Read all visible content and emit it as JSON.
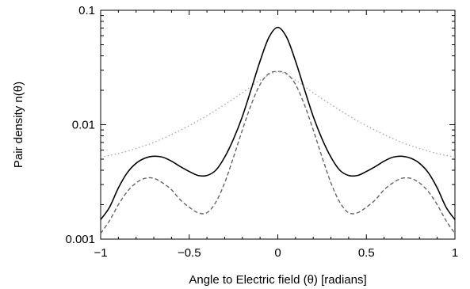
{
  "chart_data": {
    "type": "line",
    "title": "",
    "xlabel": "Angle to Electric field (θ) [radians]",
    "ylabel": "Pair density n(θ)",
    "xlim": [
      -1,
      1
    ],
    "ylim": [
      0.001,
      0.1
    ],
    "yscale": "log",
    "x_ticks": [
      -1,
      -0.5,
      0,
      0.5,
      1
    ],
    "x_tick_labels": [
      "−1",
      "−0.5",
      "0",
      "0.5",
      "1"
    ],
    "y_ticks": [
      0.001,
      0.01,
      0.1
    ],
    "y_tick_labels": [
      "0.001",
      "0.01",
      "0.1"
    ],
    "grid": false,
    "legend": null,
    "series": [
      {
        "style": "solid",
        "color": "#000000",
        "x": [
          -1,
          -0.95,
          -0.9,
          -0.85,
          -0.8,
          -0.75,
          -0.7,
          -0.65,
          -0.6,
          -0.55,
          -0.5,
          -0.45,
          -0.4,
          -0.35,
          -0.3,
          -0.25,
          -0.2,
          -0.15,
          -0.1,
          -0.05,
          0,
          0.05,
          0.1,
          0.15,
          0.2,
          0.25,
          0.3,
          0.35,
          0.4,
          0.45,
          0.5,
          0.55,
          0.6,
          0.65,
          0.7,
          0.75,
          0.8,
          0.85,
          0.9,
          0.95,
          1
        ],
        "y": [
          0.00148,
          0.0019,
          0.0028,
          0.0038,
          0.0046,
          0.0051,
          0.0053,
          0.0052,
          0.0048,
          0.0043,
          0.0039,
          0.0036,
          0.0036,
          0.004,
          0.0052,
          0.0075,
          0.0118,
          0.0205,
          0.036,
          0.058,
          0.071,
          0.058,
          0.036,
          0.0205,
          0.0118,
          0.0075,
          0.0052,
          0.004,
          0.0036,
          0.0036,
          0.0039,
          0.0043,
          0.0048,
          0.0052,
          0.0053,
          0.0051,
          0.0046,
          0.0038,
          0.0028,
          0.0019,
          0.00148
        ]
      },
      {
        "style": "dashed",
        "color": "#666666",
        "x": [
          -1,
          -0.95,
          -0.9,
          -0.85,
          -0.8,
          -0.75,
          -0.7,
          -0.65,
          -0.6,
          -0.55,
          -0.5,
          -0.45,
          -0.4,
          -0.35,
          -0.3,
          -0.25,
          -0.2,
          -0.15,
          -0.1,
          -0.05,
          0,
          0.05,
          0.1,
          0.15,
          0.2,
          0.25,
          0.3,
          0.35,
          0.4,
          0.45,
          0.5,
          0.55,
          0.6,
          0.65,
          0.7,
          0.75,
          0.8,
          0.85,
          0.9,
          0.95,
          1
        ],
        "y": [
          0.00112,
          0.00145,
          0.002,
          0.0026,
          0.0031,
          0.0034,
          0.0034,
          0.0031,
          0.0027,
          0.0022,
          0.0019,
          0.0017,
          0.0017,
          0.0021,
          0.0031,
          0.0052,
          0.009,
          0.015,
          0.0225,
          0.028,
          0.0292,
          0.028,
          0.0225,
          0.015,
          0.009,
          0.0052,
          0.0031,
          0.0021,
          0.0017,
          0.0017,
          0.0019,
          0.0022,
          0.0027,
          0.0031,
          0.0034,
          0.0034,
          0.0031,
          0.0026,
          0.002,
          0.00145,
          0.00112
        ]
      },
      {
        "style": "dotted",
        "color": "#aaaaaa",
        "x": [
          -1,
          -0.9,
          -0.8,
          -0.7,
          -0.6,
          -0.5,
          -0.4,
          -0.3,
          -0.2,
          -0.1,
          0,
          0.1,
          0.2,
          0.3,
          0.4,
          0.5,
          0.6,
          0.7,
          0.8,
          0.9,
          1
        ],
        "y": [
          0.0052,
          0.0056,
          0.0062,
          0.007,
          0.0082,
          0.0098,
          0.012,
          0.015,
          0.019,
          0.0245,
          0.029,
          0.0245,
          0.019,
          0.015,
          0.012,
          0.0098,
          0.0082,
          0.007,
          0.0062,
          0.0056,
          0.0052
        ]
      }
    ]
  }
}
